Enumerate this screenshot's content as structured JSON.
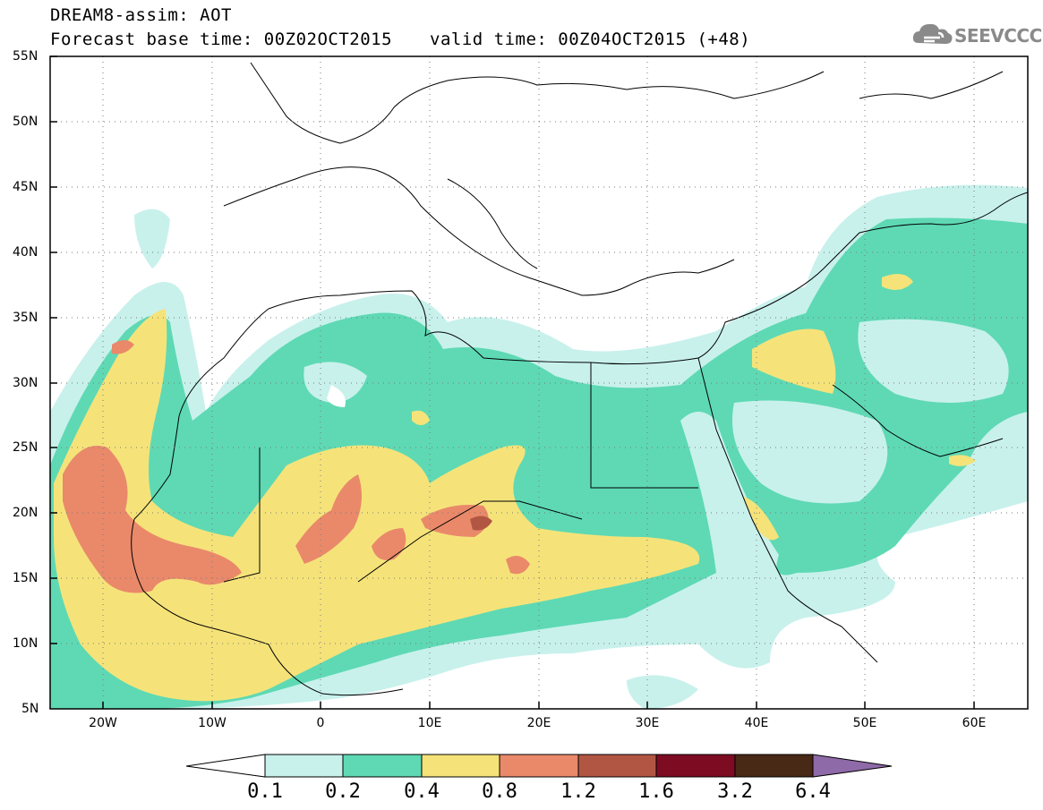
{
  "title": {
    "line1": "DREAM8-assim: AOT",
    "line2": "Forecast base time: 00Z02OCT2015",
    "valid": "valid time: 00Z04OCT2015 (+48)"
  },
  "logo": {
    "text": "SEEVCCC",
    "icon": "cloud-logo-icon"
  },
  "map": {
    "lat_labels": [
      "55N",
      "50N",
      "45N",
      "40N",
      "35N",
      "30N",
      "25N",
      "20N",
      "15N",
      "10N",
      "5N"
    ],
    "lon_labels": [
      "20W",
      "10W",
      "0",
      "10E",
      "20E",
      "30E",
      "40E",
      "50E",
      "60E"
    ],
    "lon_range": [
      -25,
      65
    ],
    "lat_range": [
      5,
      55
    ],
    "grid": "dotted"
  },
  "colorbar": {
    "labels": [
      "0.1",
      "0.2",
      "0.4",
      "0.8",
      "1.2",
      "1.6",
      "3.2",
      "6.4"
    ],
    "colors": [
      "#ffffff",
      "#c8f1ec",
      "#5ed9b4",
      "#f5e37a",
      "#e9896a",
      "#b25644",
      "#7d0b22",
      "#472915",
      "#8f6aa8"
    ]
  }
}
